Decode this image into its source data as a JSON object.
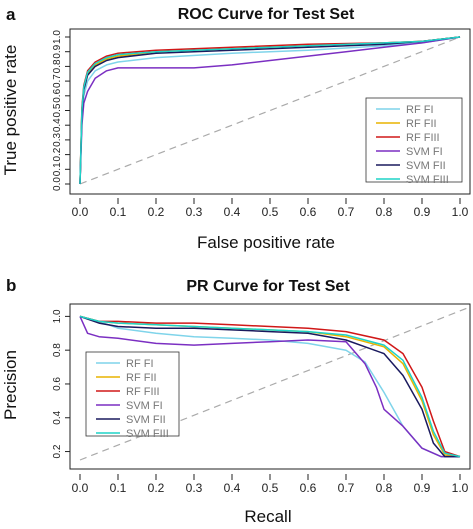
{
  "chart_data": [
    {
      "panel_label": "a",
      "type": "line",
      "title": "ROC Curve for Test Set",
      "xlabel": "False positive rate",
      "ylabel": "True positive rate",
      "xlim": [
        0,
        1
      ],
      "ylim": [
        0,
        1
      ],
      "xticks": [
        "0.0",
        "0.1",
        "0.2",
        "0.3",
        "0.4",
        "0.5",
        "0.6",
        "0.7",
        "0.8",
        "0.9",
        "1.0"
      ],
      "yticks": [
        "0.0",
        "0.1",
        "0.2",
        "0.3",
        "0.4",
        "0.5",
        "0.6",
        "0.7",
        "0.8",
        "0.9",
        "1.0"
      ],
      "grid": false,
      "legend_position": "bottom-right",
      "reference_line": {
        "style": "dashed",
        "color": "#aaaaaa",
        "points": [
          [
            0,
            0
          ],
          [
            1,
            1
          ]
        ]
      },
      "series": [
        {
          "name": "RF FI",
          "color": "#7fd4ea",
          "points": [
            [
              0,
              0
            ],
            [
              0.005,
              0.45
            ],
            [
              0.01,
              0.6
            ],
            [
              0.02,
              0.7
            ],
            [
              0.04,
              0.77
            ],
            [
              0.07,
              0.81
            ],
            [
              0.1,
              0.83
            ],
            [
              0.2,
              0.86
            ],
            [
              0.4,
              0.89
            ],
            [
              0.6,
              0.91
            ],
            [
              0.8,
              0.94
            ],
            [
              0.9,
              0.96
            ],
            [
              1,
              1
            ]
          ]
        },
        {
          "name": "RF FII",
          "color": "#e8b400",
          "points": [
            [
              0,
              0
            ],
            [
              0.005,
              0.5
            ],
            [
              0.01,
              0.65
            ],
            [
              0.02,
              0.75
            ],
            [
              0.04,
              0.81
            ],
            [
              0.07,
              0.85
            ],
            [
              0.1,
              0.87
            ],
            [
              0.2,
              0.9
            ],
            [
              0.4,
              0.92
            ],
            [
              0.6,
              0.94
            ],
            [
              0.8,
              0.96
            ],
            [
              0.9,
              0.97
            ],
            [
              1,
              1
            ]
          ]
        },
        {
          "name": "RF FIII",
          "color": "#d01818",
          "points": [
            [
              0,
              0
            ],
            [
              0.005,
              0.52
            ],
            [
              0.01,
              0.67
            ],
            [
              0.02,
              0.77
            ],
            [
              0.04,
              0.83
            ],
            [
              0.07,
              0.87
            ],
            [
              0.1,
              0.89
            ],
            [
              0.2,
              0.91
            ],
            [
              0.4,
              0.93
            ],
            [
              0.6,
              0.95
            ],
            [
              0.8,
              0.96
            ],
            [
              0.9,
              0.97
            ],
            [
              1,
              1
            ]
          ]
        },
        {
          "name": "SVM FI",
          "color": "#7b2fc2",
          "points": [
            [
              0,
              0
            ],
            [
              0.005,
              0.4
            ],
            [
              0.01,
              0.55
            ],
            [
              0.02,
              0.63
            ],
            [
              0.04,
              0.72
            ],
            [
              0.07,
              0.77
            ],
            [
              0.1,
              0.79
            ],
            [
              0.2,
              0.79
            ],
            [
              0.3,
              0.79
            ],
            [
              0.4,
              0.81
            ],
            [
              0.5,
              0.84
            ],
            [
              0.6,
              0.87
            ],
            [
              0.7,
              0.9
            ],
            [
              0.8,
              0.93
            ],
            [
              0.9,
              0.96
            ],
            [
              1,
              1
            ]
          ]
        },
        {
          "name": "SVM FII",
          "color": "#1a1a5e",
          "points": [
            [
              0,
              0
            ],
            [
              0.005,
              0.48
            ],
            [
              0.01,
              0.64
            ],
            [
              0.02,
              0.74
            ],
            [
              0.04,
              0.8
            ],
            [
              0.07,
              0.84
            ],
            [
              0.1,
              0.86
            ],
            [
              0.2,
              0.89
            ],
            [
              0.4,
              0.91
            ],
            [
              0.6,
              0.93
            ],
            [
              0.8,
              0.95
            ],
            [
              0.9,
              0.97
            ],
            [
              1,
              1
            ]
          ]
        },
        {
          "name": "SVM FIII",
          "color": "#1ed3c7",
          "points": [
            [
              0,
              0
            ],
            [
              0.005,
              0.5
            ],
            [
              0.01,
              0.66
            ],
            [
              0.02,
              0.76
            ],
            [
              0.04,
              0.82
            ],
            [
              0.07,
              0.86
            ],
            [
              0.1,
              0.88
            ],
            [
              0.2,
              0.9
            ],
            [
              0.4,
              0.92
            ],
            [
              0.6,
              0.94
            ],
            [
              0.8,
              0.96
            ],
            [
              0.9,
              0.97
            ],
            [
              1,
              1
            ]
          ]
        }
      ]
    },
    {
      "panel_label": "b",
      "type": "line",
      "title": "PR Curve for Test Set",
      "xlabel": "Recall",
      "ylabel": "Precision",
      "xlim": [
        0,
        1
      ],
      "ylim": [
        0.15,
        1.02
      ],
      "xticks": [
        "0.0",
        "0.1",
        "0.2",
        "0.3",
        "0.4",
        "0.5",
        "0.6",
        "0.7",
        "0.8",
        "0.9",
        "1.0"
      ],
      "yticks": [
        "0.2",
        "0.4",
        "0.6",
        "0.8",
        "1.0"
      ],
      "grid": false,
      "legend_position": "bottom-left",
      "reference_line": {
        "style": "dashed",
        "color": "#aaaaaa",
        "points": [
          [
            0,
            0.15
          ],
          [
            1,
            1.02
          ]
        ]
      },
      "series": [
        {
          "name": "RF FI",
          "color": "#7fd4ea",
          "points": [
            [
              0,
              1
            ],
            [
              0.05,
              0.97
            ],
            [
              0.1,
              0.93
            ],
            [
              0.2,
              0.9
            ],
            [
              0.3,
              0.88
            ],
            [
              0.4,
              0.87
            ],
            [
              0.5,
              0.86
            ],
            [
              0.6,
              0.84
            ],
            [
              0.7,
              0.8
            ],
            [
              0.75,
              0.73
            ],
            [
              0.8,
              0.55
            ],
            [
              0.85,
              0.35
            ],
            [
              0.9,
              0.22
            ],
            [
              0.95,
              0.17
            ],
            [
              1,
              0.17
            ]
          ]
        },
        {
          "name": "RF FII",
          "color": "#e8b400",
          "points": [
            [
              0,
              1
            ],
            [
              0.05,
              0.97
            ],
            [
              0.1,
              0.96
            ],
            [
              0.2,
              0.95
            ],
            [
              0.3,
              0.94
            ],
            [
              0.4,
              0.93
            ],
            [
              0.5,
              0.92
            ],
            [
              0.6,
              0.91
            ],
            [
              0.7,
              0.88
            ],
            [
              0.8,
              0.82
            ],
            [
              0.85,
              0.72
            ],
            [
              0.9,
              0.5
            ],
            [
              0.93,
              0.3
            ],
            [
              0.96,
              0.18
            ],
            [
              1,
              0.17
            ]
          ]
        },
        {
          "name": "RF FIII",
          "color": "#d01818",
          "points": [
            [
              0,
              1
            ],
            [
              0.05,
              0.97
            ],
            [
              0.1,
              0.97
            ],
            [
              0.2,
              0.96
            ],
            [
              0.3,
              0.96
            ],
            [
              0.4,
              0.95
            ],
            [
              0.5,
              0.94
            ],
            [
              0.6,
              0.93
            ],
            [
              0.7,
              0.91
            ],
            [
              0.8,
              0.86
            ],
            [
              0.85,
              0.78
            ],
            [
              0.9,
              0.58
            ],
            [
              0.93,
              0.38
            ],
            [
              0.96,
              0.2
            ],
            [
              1,
              0.17
            ]
          ]
        },
        {
          "name": "SVM FI",
          "color": "#7b2fc2",
          "points": [
            [
              0,
              1
            ],
            [
              0.02,
              0.9
            ],
            [
              0.05,
              0.88
            ],
            [
              0.1,
              0.87
            ],
            [
              0.2,
              0.84
            ],
            [
              0.3,
              0.83
            ],
            [
              0.4,
              0.84
            ],
            [
              0.5,
              0.85
            ],
            [
              0.6,
              0.86
            ],
            [
              0.7,
              0.85
            ],
            [
              0.75,
              0.72
            ],
            [
              0.78,
              0.58
            ],
            [
              0.8,
              0.45
            ],
            [
              0.85,
              0.35
            ],
            [
              0.9,
              0.22
            ],
            [
              0.95,
              0.17
            ],
            [
              1,
              0.17
            ]
          ]
        },
        {
          "name": "SVM FII",
          "color": "#1a1a5e",
          "points": [
            [
              0,
              1
            ],
            [
              0.05,
              0.96
            ],
            [
              0.1,
              0.94
            ],
            [
              0.2,
              0.93
            ],
            [
              0.3,
              0.93
            ],
            [
              0.4,
              0.92
            ],
            [
              0.5,
              0.91
            ],
            [
              0.6,
              0.9
            ],
            [
              0.7,
              0.86
            ],
            [
              0.8,
              0.78
            ],
            [
              0.85,
              0.65
            ],
            [
              0.9,
              0.45
            ],
            [
              0.93,
              0.25
            ],
            [
              0.96,
              0.17
            ],
            [
              1,
              0.17
            ]
          ]
        },
        {
          "name": "SVM FIII",
          "color": "#1ed3c7",
          "points": [
            [
              0,
              1
            ],
            [
              0.05,
              0.97
            ],
            [
              0.1,
              0.96
            ],
            [
              0.2,
              0.95
            ],
            [
              0.3,
              0.94
            ],
            [
              0.4,
              0.93
            ],
            [
              0.5,
              0.92
            ],
            [
              0.6,
              0.91
            ],
            [
              0.7,
              0.89
            ],
            [
              0.8,
              0.83
            ],
            [
              0.85,
              0.74
            ],
            [
              0.9,
              0.52
            ],
            [
              0.93,
              0.32
            ],
            [
              0.96,
              0.19
            ],
            [
              1,
              0.17
            ]
          ]
        }
      ]
    }
  ]
}
